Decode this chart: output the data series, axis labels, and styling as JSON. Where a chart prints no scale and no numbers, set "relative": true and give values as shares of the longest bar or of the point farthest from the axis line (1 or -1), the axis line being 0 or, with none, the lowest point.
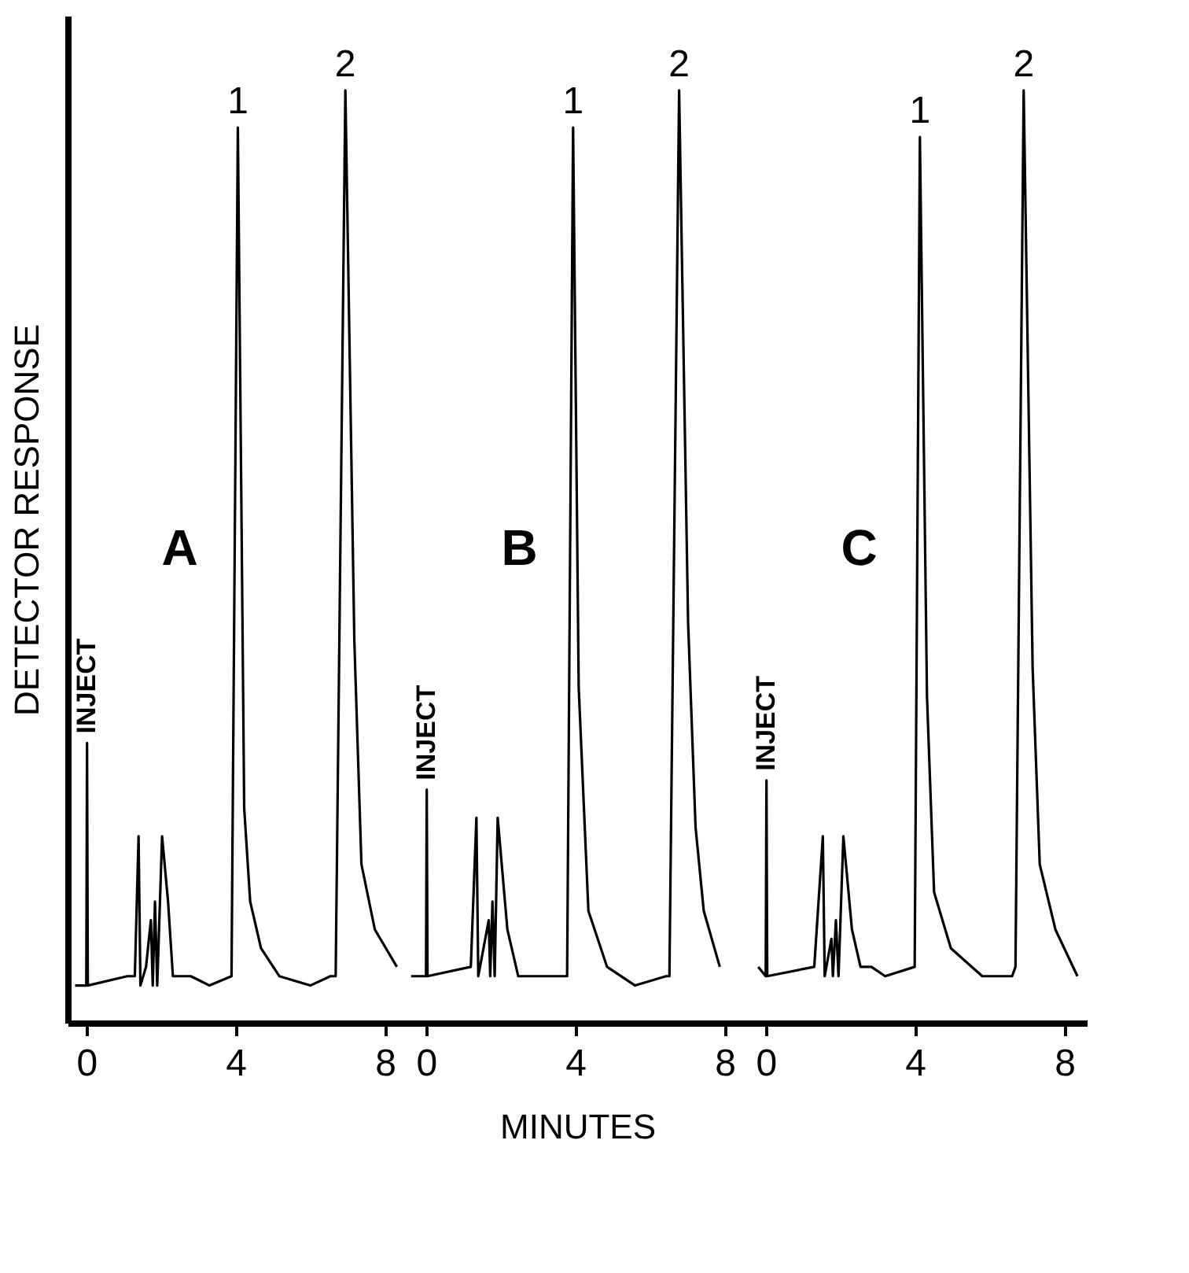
{
  "chart_data": [
    {
      "type": "line",
      "relative": true,
      "ylabel": "DETECTOR RESPONSE",
      "xlim": [
        -0.5,
        8.6
      ],
      "xticks": [
        0,
        4,
        8
      ],
      "tick_labels": "x",
      "marker": "none",
      "line_style": "solid",
      "annotations": [
        "A",
        {
          "text": "INJECT",
          "x": 0.02,
          "y": 0.3
        },
        {
          "text": "1",
          "x": 4.06,
          "y": 0.96
        },
        {
          "text": "2",
          "x": 6.94,
          "y": 1
        }
      ],
      "series": [
        {
          "color": "#000000",
          "x": [
            -0.3,
            0,
            0.02,
            0.04,
            1.1,
            1.3,
            1.4,
            1.45,
            1.6,
            1.73,
            1.78,
            1.84,
            1.9,
            2.03,
            2.19,
            2.32,
            2.8,
            3.3,
            3.89,
            4.06,
            4.23,
            4.39,
            4.68,
            5.17,
            6.0,
            6.54,
            6.68,
            6.94,
            7.18,
            7.37,
            7.73,
            8.32
          ],
          "values": [
            0.04,
            0.04,
            0.3,
            0.04,
            0.05,
            0.05,
            0.2,
            0.04,
            0.06,
            0.11,
            0.04,
            0.13,
            0.04,
            0.2,
            0.13,
            0.05,
            0.05,
            0.04,
            0.05,
            0.96,
            0.23,
            0.13,
            0.08,
            0.05,
            0.04,
            0.05,
            0.05,
            1,
            0.41,
            0.17,
            0.1,
            0.06
          ]
        }
      ]
    },
    {
      "type": "line",
      "relative": true,
      "xlabel": "MINUTES",
      "xlim": [
        -0.5,
        8.6
      ],
      "xticks": [
        0,
        4,
        8
      ],
      "tick_labels": "x",
      "marker": "none",
      "line_style": "solid",
      "annotations": [
        "B",
        {
          "text": "INJECT",
          "x": 0.02,
          "y": 0.25
        },
        {
          "text": "1",
          "x": 3.94,
          "y": 0.96
        },
        {
          "text": "2",
          "x": 6.78,
          "y": 1
        }
      ],
      "series": [
        {
          "color": "#000000",
          "x": [
            -0.4,
            0,
            0.02,
            0.04,
            1.2,
            1.35,
            1.4,
            1.68,
            1.72,
            1.78,
            1.84,
            1.92,
            2.18,
            2.47,
            3.0,
            3.78,
            3.94,
            4.09,
            4.35,
            4.85,
            5.6,
            6.43,
            6.52,
            6.78,
            7.02,
            7.22,
            7.44,
            7.87
          ],
          "values": [
            0.05,
            0.05,
            0.25,
            0.05,
            0.06,
            0.22,
            0.05,
            0.11,
            0.05,
            0.13,
            0.05,
            0.22,
            0.1,
            0.05,
            0.05,
            0.05,
            0.96,
            0.36,
            0.12,
            0.06,
            0.04,
            0.05,
            0.05,
            1,
            0.43,
            0.21,
            0.12,
            0.06
          ]
        }
      ]
    },
    {
      "type": "line",
      "relative": true,
      "xlim": [
        -0.5,
        8.6
      ],
      "xticks": [
        0,
        4,
        8
      ],
      "tick_labels": "x",
      "marker": "none",
      "line_style": "solid",
      "annotations": [
        "C",
        {
          "text": "INJECT",
          "x": 0.02,
          "y": 0.26
        },
        {
          "text": "1",
          "x": 4.13,
          "y": 0.95
        },
        {
          "text": "2",
          "x": 6.91,
          "y": 1
        }
      ],
      "series": [
        {
          "color": "#000000",
          "x": [
            -0.2,
            0,
            0.02,
            0.04,
            1.3,
            1.53,
            1.58,
            1.76,
            1.8,
            1.88,
            1.95,
            2.08,
            2.31,
            2.54,
            2.83,
            3.2,
            3.99,
            4.13,
            4.32,
            4.51,
            4.96,
            5.8,
            6.6,
            6.69,
            6.91,
            7.15,
            7.34,
            7.76,
            8.35
          ],
          "values": [
            0.06,
            0.05,
            0.26,
            0.05,
            0.06,
            0.2,
            0.05,
            0.09,
            0.05,
            0.11,
            0.05,
            0.2,
            0.1,
            0.06,
            0.06,
            0.05,
            0.06,
            0.95,
            0.35,
            0.14,
            0.08,
            0.05,
            0.05,
            0.06,
            1,
            0.38,
            0.17,
            0.1,
            0.05
          ]
        }
      ]
    }
  ]
}
